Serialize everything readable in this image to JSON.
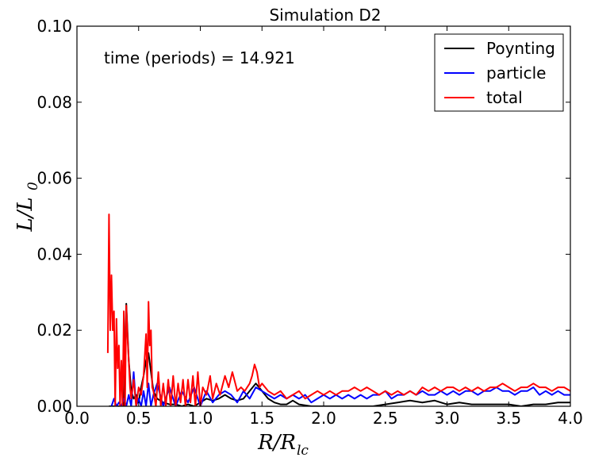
{
  "chart_data": {
    "type": "line",
    "title": "Simulation D2",
    "annotation": "time (periods) = 14.921",
    "xlabel": {
      "main": "R/R",
      "sub": "lc"
    },
    "ylabel": {
      "main": "L/L",
      "sub": "0"
    },
    "xlim": [
      0.0,
      4.0
    ],
    "ylim": [
      0.0,
      0.1
    ],
    "x_ticks": [
      "0.0",
      "0.5",
      "1.0",
      "1.5",
      "2.0",
      "2.5",
      "3.0",
      "3.5",
      "4.0"
    ],
    "y_ticks": [
      "0.00",
      "0.02",
      "0.04",
      "0.06",
      "0.08",
      "0.10"
    ],
    "legend_position": "top-right",
    "series": [
      {
        "name": "Poynting",
        "color": "#000000",
        "x": [
          0.26,
          0.28,
          0.3,
          0.32,
          0.34,
          0.36,
          0.38,
          0.4,
          0.42,
          0.44,
          0.46,
          0.48,
          0.5,
          0.52,
          0.54,
          0.56,
          0.58,
          0.6,
          0.62,
          0.65,
          0.7,
          0.75,
          0.8,
          0.85,
          0.9,
          0.95,
          1.0,
          1.05,
          1.1,
          1.15,
          1.2,
          1.25,
          1.3,
          1.35,
          1.4,
          1.45,
          1.5,
          1.55,
          1.6,
          1.65,
          1.7,
          1.75,
          1.8,
          1.9,
          2.0,
          2.1,
          2.2,
          2.3,
          2.4,
          2.5,
          2.6,
          2.7,
          2.8,
          2.9,
          3.0,
          3.1,
          3.2,
          3.3,
          3.4,
          3.5,
          3.6,
          3.7,
          3.8,
          3.9,
          4.0
        ],
        "y": [
          0.0,
          0.0,
          0.0,
          0.0,
          0.0,
          0.0,
          0.0,
          0.027,
          0.012,
          0.004,
          0.002,
          0.003,
          0.001,
          0.005,
          0.008,
          0.012,
          0.014,
          0.009,
          0.004,
          0.002,
          0.001,
          0.0005,
          0.0005,
          0.0,
          0.0005,
          0.0,
          0.001,
          0.002,
          0.0015,
          0.002,
          0.003,
          0.002,
          0.0015,
          0.002,
          0.004,
          0.006,
          0.004,
          0.002,
          0.001,
          0.0005,
          0.0005,
          0.0015,
          0.0005,
          0.0,
          0.0,
          0.0,
          0.0,
          0.0,
          0.0,
          0.0005,
          0.001,
          0.0015,
          0.001,
          0.0015,
          0.0005,
          0.001,
          0.0005,
          0.0005,
          0.0005,
          0.0005,
          0.0,
          0.0005,
          0.0005,
          0.001,
          0.001
        ]
      },
      {
        "name": "particle",
        "color": "#0000ff",
        "x": [
          0.28,
          0.3,
          0.32,
          0.34,
          0.36,
          0.38,
          0.4,
          0.42,
          0.44,
          0.46,
          0.48,
          0.5,
          0.52,
          0.54,
          0.56,
          0.58,
          0.6,
          0.62,
          0.65,
          0.7,
          0.75,
          0.8,
          0.85,
          0.9,
          0.95,
          1.0,
          1.05,
          1.1,
          1.15,
          1.2,
          1.25,
          1.3,
          1.35,
          1.4,
          1.45,
          1.5,
          1.55,
          1.6,
          1.65,
          1.7,
          1.75,
          1.8,
          1.85,
          1.9,
          1.95,
          2.0,
          2.05,
          2.1,
          2.15,
          2.2,
          2.25,
          2.3,
          2.35,
          2.4,
          2.45,
          2.5,
          2.55,
          2.6,
          2.65,
          2.7,
          2.75,
          2.8,
          2.85,
          2.9,
          2.95,
          3.0,
          3.05,
          3.1,
          3.15,
          3.2,
          3.25,
          3.3,
          3.35,
          3.4,
          3.45,
          3.5,
          3.55,
          3.6,
          3.65,
          3.7,
          3.75,
          3.8,
          3.85,
          3.9,
          3.95,
          4.0
        ],
        "y": [
          0.0,
          0.002,
          0.0,
          0.001,
          0.0,
          0.002,
          0.0,
          0.003,
          0.0,
          0.009,
          0.0,
          0.002,
          0.0,
          0.004,
          0.0,
          0.006,
          0.0,
          0.003,
          0.006,
          0.0,
          0.005,
          0.0,
          0.004,
          0.001,
          0.005,
          0.0,
          0.004,
          0.001,
          0.003,
          0.004,
          0.003,
          0.001,
          0.004,
          0.002,
          0.005,
          0.004,
          0.003,
          0.002,
          0.003,
          0.002,
          0.003,
          0.002,
          0.003,
          0.001,
          0.002,
          0.003,
          0.002,
          0.003,
          0.002,
          0.003,
          0.002,
          0.003,
          0.002,
          0.003,
          0.003,
          0.004,
          0.002,
          0.003,
          0.003,
          0.004,
          0.003,
          0.004,
          0.003,
          0.003,
          0.004,
          0.003,
          0.004,
          0.003,
          0.004,
          0.004,
          0.003,
          0.004,
          0.004,
          0.005,
          0.004,
          0.004,
          0.003,
          0.004,
          0.004,
          0.005,
          0.003,
          0.004,
          0.003,
          0.004,
          0.003,
          0.003
        ]
      },
      {
        "name": "total",
        "color": "#ff0000",
        "x": [
          0.25,
          0.26,
          0.27,
          0.28,
          0.29,
          0.3,
          0.31,
          0.32,
          0.33,
          0.34,
          0.35,
          0.36,
          0.37,
          0.38,
          0.39,
          0.4,
          0.41,
          0.42,
          0.43,
          0.44,
          0.46,
          0.48,
          0.5,
          0.52,
          0.54,
          0.56,
          0.57,
          0.58,
          0.59,
          0.6,
          0.61,
          0.62,
          0.64,
          0.66,
          0.68,
          0.7,
          0.72,
          0.74,
          0.76,
          0.78,
          0.8,
          0.82,
          0.84,
          0.86,
          0.88,
          0.9,
          0.92,
          0.94,
          0.96,
          0.98,
          1.0,
          1.02,
          1.05,
          1.08,
          1.1,
          1.13,
          1.16,
          1.2,
          1.23,
          1.26,
          1.3,
          1.33,
          1.36,
          1.4,
          1.42,
          1.44,
          1.46,
          1.48,
          1.5,
          1.55,
          1.6,
          1.65,
          1.7,
          1.75,
          1.8,
          1.85,
          1.9,
          1.95,
          2.0,
          2.05,
          2.1,
          2.15,
          2.2,
          2.25,
          2.3,
          2.35,
          2.4,
          2.45,
          2.5,
          2.55,
          2.6,
          2.65,
          2.7,
          2.75,
          2.8,
          2.85,
          2.9,
          2.95,
          3.0,
          3.05,
          3.1,
          3.15,
          3.2,
          3.25,
          3.3,
          3.35,
          3.4,
          3.45,
          3.5,
          3.55,
          3.6,
          3.65,
          3.7,
          3.75,
          3.8,
          3.85,
          3.9,
          3.95,
          4.0
        ],
        "y": [
          0.014,
          0.0505,
          0.02,
          0.0345,
          0.02,
          0.025,
          0.0,
          0.023,
          0.01,
          0.016,
          0.0,
          0.012,
          0.0,
          0.025,
          0.0,
          0.0265,
          0.018,
          0.012,
          0.005,
          0.002,
          0.007,
          0.0,
          0.005,
          0.003,
          0.008,
          0.019,
          0.005,
          0.0275,
          0.016,
          0.02,
          0.005,
          0.004,
          0.0,
          0.009,
          0.0,
          0.006,
          0.0,
          0.007,
          0.0,
          0.008,
          0.0,
          0.006,
          0.001,
          0.007,
          0.0,
          0.007,
          0.001,
          0.008,
          0.0,
          0.009,
          0.0,
          0.005,
          0.003,
          0.008,
          0.002,
          0.006,
          0.003,
          0.008,
          0.005,
          0.009,
          0.004,
          0.005,
          0.004,
          0.006,
          0.008,
          0.011,
          0.009,
          0.005,
          0.006,
          0.004,
          0.003,
          0.004,
          0.002,
          0.003,
          0.004,
          0.002,
          0.003,
          0.004,
          0.003,
          0.004,
          0.003,
          0.004,
          0.004,
          0.005,
          0.004,
          0.005,
          0.004,
          0.003,
          0.004,
          0.003,
          0.004,
          0.003,
          0.004,
          0.003,
          0.005,
          0.004,
          0.005,
          0.004,
          0.005,
          0.005,
          0.004,
          0.005,
          0.004,
          0.005,
          0.004,
          0.005,
          0.005,
          0.006,
          0.005,
          0.004,
          0.005,
          0.005,
          0.006,
          0.005,
          0.005,
          0.004,
          0.005,
          0.005,
          0.004
        ]
      }
    ]
  }
}
